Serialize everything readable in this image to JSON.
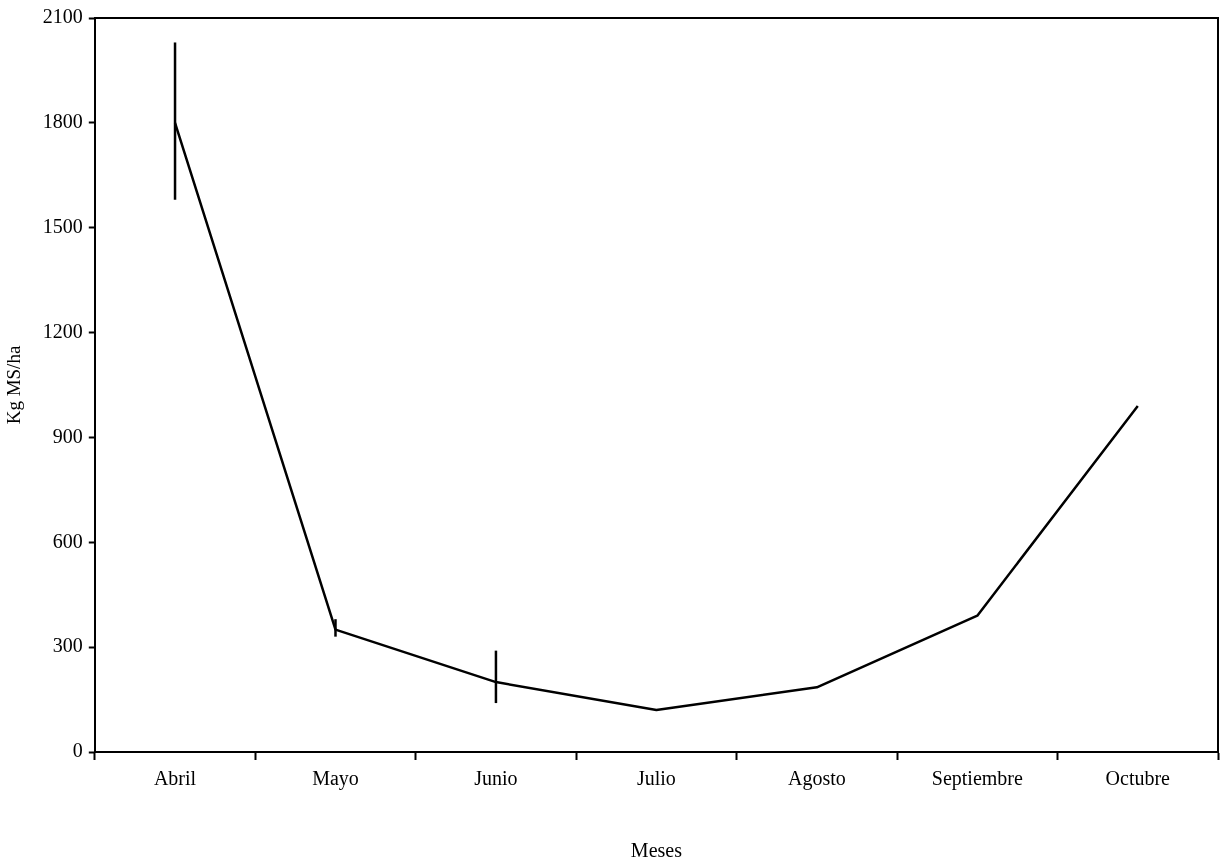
{
  "chart_data": {
    "type": "line",
    "xlabel": "Meses",
    "ylabel": "Kg MS/ha",
    "categories": [
      "Abril",
      "Mayo",
      "Junio",
      "Julio",
      "Agosto",
      "Septiembre",
      "Octubre"
    ],
    "values": [
      1800,
      350,
      200,
      120,
      185,
      390,
      990
    ],
    "errors": [
      [
        1580,
        2030
      ],
      [
        330,
        380
      ],
      [
        140,
        290
      ],
      null,
      null,
      null,
      null
    ],
    "color": "#000000",
    "ylim": [
      0,
      2100
    ],
    "yticks": [
      0,
      300,
      600,
      900,
      1200,
      1500,
      1800,
      2100
    ],
    "grid": false,
    "legend": false,
    "marker": "none",
    "line_style": "solid"
  }
}
